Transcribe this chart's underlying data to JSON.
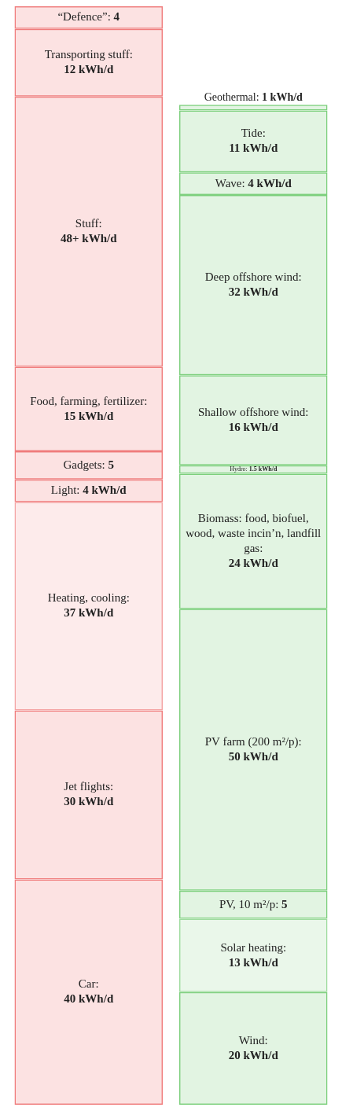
{
  "chart_data": {
    "type": "bar",
    "stacked": true,
    "tick_labels": false,
    "categories": [
      null,
      null
    ],
    "series": [
      {
        "name": "Car:",
        "color": "#f07c7c",
        "values": [
          40,
          null
        ],
        "value_labels": [
          "40 kWh/d",
          null
        ]
      },
      {
        "name": "Jet flights:",
        "color": "#f07c7c",
        "values": [
          30,
          null
        ],
        "value_labels": [
          "30 kWh/d",
          null
        ]
      },
      {
        "name": "Heating, cooling:",
        "color": "#f4a3a3",
        "values": [
          37,
          null
        ],
        "value_labels": [
          "37 kWh/d",
          null
        ]
      },
      {
        "name": "Light:",
        "color": "#f07c7c",
        "values": [
          4,
          null
        ],
        "value_labels": [
          "4 kWh/d",
          null
        ]
      },
      {
        "name": "Gadgets:",
        "color": "#f07c7c",
        "values": [
          5,
          null
        ],
        "value_labels": [
          "5",
          null
        ]
      },
      {
        "name": "Food, farming, fertilizer:",
        "color": "#f07c7c",
        "values": [
          15,
          null
        ],
        "value_labels": [
          "15 kWh/d",
          null
        ]
      },
      {
        "name": "Stuff:",
        "color": "#f07c7c",
        "values": [
          48,
          null
        ],
        "value_labels": [
          "48+ kWh/d",
          null
        ]
      },
      {
        "name": "Transporting stuff:",
        "color": "#f07c7c",
        "values": [
          12,
          null
        ],
        "value_labels": [
          "12 kWh/d",
          null
        ]
      },
      {
        "name": "“Defence”:",
        "color": "#f07c7c",
        "values": [
          4,
          null
        ],
        "value_labels": [
          "4",
          null
        ]
      },
      {
        "name": "Wind:",
        "color": "#7ccf7c",
        "values": [
          null,
          20
        ],
        "value_labels": [
          null,
          "20 kWh/d"
        ]
      },
      {
        "name": "Solar heating:",
        "color": "#9edb9e",
        "values": [
          null,
          13
        ],
        "value_labels": [
          null,
          "13 kWh/d"
        ]
      },
      {
        "name": "PV, 10 m²/p:",
        "color": "#7ccf7c",
        "values": [
          null,
          5
        ],
        "value_labels": [
          null,
          "5"
        ]
      },
      {
        "name": "PV farm (200 m²/p):",
        "color": "#7ccf7c",
        "values": [
          null,
          50
        ],
        "value_labels": [
          null,
          "50 kWh/d"
        ]
      },
      {
        "name": "Biomass: food, biofuel, wood, waste incin’n, landfill gas:",
        "color": "#7ccf7c",
        "values": [
          null,
          24
        ],
        "value_labels": [
          null,
          "24 kWh/d"
        ]
      },
      {
        "name": "Hydro:",
        "color": "#7ccf7c",
        "values": [
          null,
          1.5
        ],
        "value_labels": [
          null,
          "1.5 kWh/d"
        ]
      },
      {
        "name": "Shallow offshore wind:",
        "color": "#7ccf7c",
        "values": [
          null,
          16
        ],
        "value_labels": [
          null,
          "16 kWh/d"
        ]
      },
      {
        "name": "Deep offshore wind:",
        "color": "#7ccf7c",
        "values": [
          null,
          32
        ],
        "value_labels": [
          null,
          "32 kWh/d"
        ]
      },
      {
        "name": "Wave:",
        "color": "#7ccf7c",
        "values": [
          null,
          4
        ],
        "value_labels": [
          null,
          "4 kWh/d"
        ]
      },
      {
        "name": "Tide:",
        "color": "#7ccf7c",
        "values": [
          null,
          11
        ],
        "value_labels": [
          null,
          "11 kWh/d"
        ]
      },
      {
        "name": "Geothermal:",
        "color": "#7ccf7c",
        "values": [
          null,
          1
        ],
        "value_labels": [
          null,
          "1 kWh/d"
        ]
      }
    ]
  }
}
